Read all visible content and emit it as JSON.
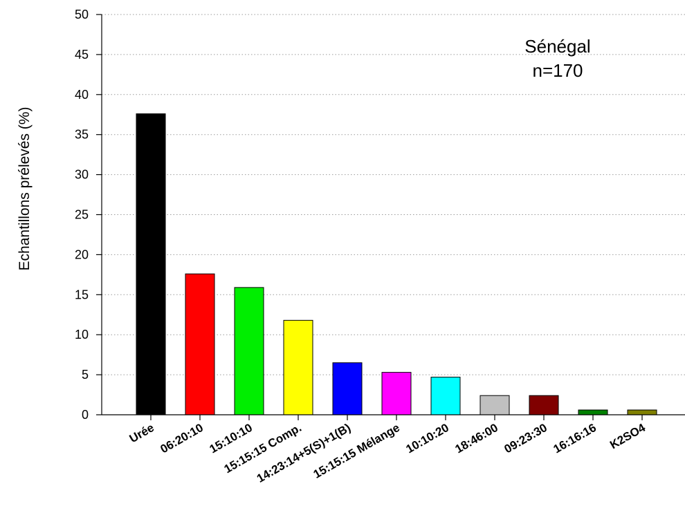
{
  "chart_data": {
    "type": "bar",
    "title": "",
    "xlabel": "",
    "ylabel": "Echantillons prélevés (%)",
    "ylim": [
      0,
      50
    ],
    "yticks": [
      0,
      5,
      10,
      15,
      20,
      25,
      30,
      35,
      40,
      45,
      50
    ],
    "grid": "horizontal dotted",
    "categories": [
      "Urée",
      "06:20:10",
      "15:10:10",
      "15:15:15 Comp.",
      "14:23:14+5(S)+1(B)",
      "15:15:15 Mélange",
      "10:10:20",
      "18:46:00",
      "09:23:30",
      "16:16:16",
      "K2SO4"
    ],
    "values": [
      37.6,
      17.6,
      15.9,
      11.8,
      6.5,
      5.3,
      4.7,
      2.4,
      2.4,
      0.6,
      0.6
    ],
    "colors": [
      "#000000",
      "#ff0000",
      "#00ee00",
      "#ffff00",
      "#0000ff",
      "#ff00ff",
      "#00ffff",
      "#c0c0c0",
      "#800000",
      "#008000",
      "#808000"
    ],
    "annotation": [
      "Sénégal",
      "n=170"
    ]
  }
}
